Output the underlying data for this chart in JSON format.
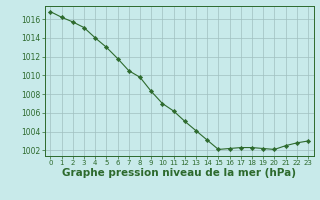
{
  "x": [
    0,
    1,
    2,
    3,
    4,
    5,
    6,
    7,
    8,
    9,
    10,
    11,
    12,
    13,
    14,
    15,
    16,
    17,
    18,
    19,
    20,
    21,
    22,
    23
  ],
  "y": [
    1016.8,
    1016.2,
    1015.7,
    1015.1,
    1014.0,
    1013.0,
    1011.8,
    1010.5,
    1009.8,
    1008.3,
    1007.0,
    1006.2,
    1005.1,
    1004.1,
    1003.1,
    1002.1,
    1002.2,
    1002.3,
    1002.3,
    1002.2,
    1002.1,
    1002.5,
    1002.8,
    1003.0
  ],
  "line_color": "#2d6a2d",
  "marker_color": "#2d6a2d",
  "bg_color": "#c8eaea",
  "grid_color": "#a0c0c0",
  "text_color": "#2d6a2d",
  "xlabel": "Graphe pression niveau de la mer (hPa)",
  "ylim_min": 1001.4,
  "ylim_max": 1017.4,
  "yticks": [
    1002,
    1004,
    1006,
    1008,
    1010,
    1012,
    1014,
    1016
  ],
  "xlabel_fontsize": 7.5,
  "tick_fontsize": 5.5
}
